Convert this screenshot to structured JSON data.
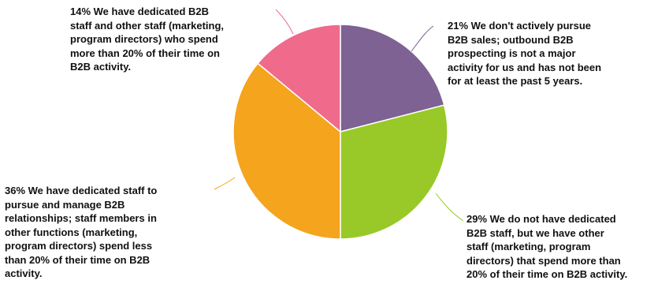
{
  "chart_data": {
    "type": "pie",
    "slices": [
      {
        "value": 21,
        "color": "#7d6293",
        "label": "21% We don't actively pursue\nB2B sales; outbound B2B\nprospecting is not a major\nactivity for us and has not been\nfor at least the past 5 years."
      },
      {
        "value": 29,
        "color": "#98c928",
        "label": "29% We do not have dedicated\nB2B staff, but we have other\nstaff (marketing, program\ndirectors) that spend more than\n20% of their time on B2B activity."
      },
      {
        "value": 36,
        "color": "#f4a41d",
        "label": "36% We have dedicated staff to\npursue and manage B2B\nrelationships; staff members in\nother functions (marketing,\nprogram directors) spend less\nthan 20% of their time on B2B\nactivity."
      },
      {
        "value": 14,
        "color": "#ef6a8b",
        "label": "14% We have dedicated B2B\nstaff and other staff (marketing,\nprogram directors) who spend\nmore than 20% of their time on\nB2B activity."
      }
    ],
    "start": "12 o'clock",
    "direction": "clockwise"
  }
}
